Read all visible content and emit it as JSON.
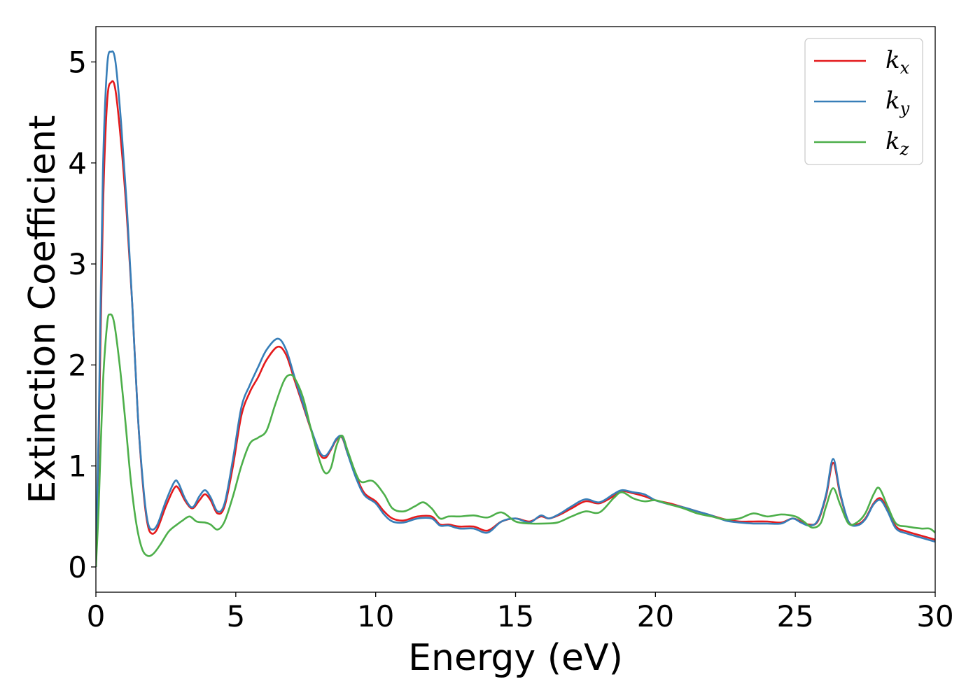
{
  "chart_data": {
    "type": "line",
    "title": "",
    "xlabel": "Energy (eV)",
    "ylabel": "Extinction Coefficient",
    "xlim": [
      0,
      30
    ],
    "ylim": [
      -0.25,
      5.35
    ],
    "x_ticks": [
      0,
      5,
      10,
      15,
      20,
      25,
      30
    ],
    "y_ticks": [
      0,
      1,
      2,
      3,
      4,
      5
    ],
    "grid": false,
    "legend_position": "top-right",
    "series": [
      {
        "name": "kx",
        "label_base": "k",
        "label_sub": "x",
        "color": "#e41a1c",
        "points": [
          [
            0,
            0
          ],
          [
            0.1,
            1.2
          ],
          [
            0.25,
            3.5
          ],
          [
            0.4,
            4.6
          ],
          [
            0.55,
            4.8
          ],
          [
            0.7,
            4.72
          ],
          [
            0.9,
            4.2
          ],
          [
            1.1,
            3.5
          ],
          [
            1.3,
            2.6
          ],
          [
            1.5,
            1.5
          ],
          [
            1.7,
            0.75
          ],
          [
            1.85,
            0.42
          ],
          [
            2.0,
            0.33
          ],
          [
            2.2,
            0.38
          ],
          [
            2.5,
            0.6
          ],
          [
            2.8,
            0.78
          ],
          [
            2.95,
            0.78
          ],
          [
            3.2,
            0.65
          ],
          [
            3.45,
            0.58
          ],
          [
            3.7,
            0.66
          ],
          [
            3.9,
            0.72
          ],
          [
            4.1,
            0.66
          ],
          [
            4.35,
            0.53
          ],
          [
            4.6,
            0.6
          ],
          [
            4.9,
            1.0
          ],
          [
            5.2,
            1.5
          ],
          [
            5.5,
            1.73
          ],
          [
            5.8,
            1.88
          ],
          [
            6.1,
            2.05
          ],
          [
            6.5,
            2.18
          ],
          [
            6.8,
            2.1
          ],
          [
            7.1,
            1.85
          ],
          [
            7.4,
            1.6
          ],
          [
            7.7,
            1.35
          ],
          [
            8.0,
            1.12
          ],
          [
            8.2,
            1.08
          ],
          [
            8.4,
            1.16
          ],
          [
            8.6,
            1.26
          ],
          [
            8.8,
            1.28
          ],
          [
            9.0,
            1.12
          ],
          [
            9.3,
            0.9
          ],
          [
            9.6,
            0.73
          ],
          [
            10.0,
            0.65
          ],
          [
            10.3,
            0.55
          ],
          [
            10.6,
            0.48
          ],
          [
            11.0,
            0.46
          ],
          [
            11.5,
            0.5
          ],
          [
            12.0,
            0.5
          ],
          [
            12.3,
            0.42
          ],
          [
            12.6,
            0.42
          ],
          [
            13.0,
            0.4
          ],
          [
            13.5,
            0.4
          ],
          [
            14.0,
            0.36
          ],
          [
            14.5,
            0.45
          ],
          [
            15.0,
            0.48
          ],
          [
            15.5,
            0.45
          ],
          [
            15.9,
            0.5
          ],
          [
            16.2,
            0.48
          ],
          [
            16.6,
            0.52
          ],
          [
            17.0,
            0.58
          ],
          [
            17.5,
            0.65
          ],
          [
            18.0,
            0.63
          ],
          [
            18.5,
            0.7
          ],
          [
            18.8,
            0.75
          ],
          [
            19.2,
            0.73
          ],
          [
            19.6,
            0.7
          ],
          [
            20.0,
            0.66
          ],
          [
            20.5,
            0.63
          ],
          [
            21.0,
            0.59
          ],
          [
            21.5,
            0.55
          ],
          [
            22.0,
            0.51
          ],
          [
            22.5,
            0.47
          ],
          [
            23.0,
            0.45
          ],
          [
            23.5,
            0.45
          ],
          [
            24.0,
            0.45
          ],
          [
            24.5,
            0.44
          ],
          [
            24.9,
            0.48
          ],
          [
            25.2,
            0.45
          ],
          [
            25.5,
            0.42
          ],
          [
            25.8,
            0.45
          ],
          [
            26.1,
            0.7
          ],
          [
            26.35,
            1.03
          ],
          [
            26.6,
            0.72
          ],
          [
            26.9,
            0.45
          ],
          [
            27.2,
            0.42
          ],
          [
            27.5,
            0.48
          ],
          [
            27.8,
            0.63
          ],
          [
            28.05,
            0.68
          ],
          [
            28.3,
            0.57
          ],
          [
            28.6,
            0.4
          ],
          [
            29.0,
            0.35
          ],
          [
            29.5,
            0.31
          ],
          [
            30.0,
            0.27
          ]
        ]
      },
      {
        "name": "ky",
        "label_base": "k",
        "label_sub": "y",
        "color": "#377eb8",
        "points": [
          [
            0,
            0
          ],
          [
            0.1,
            1.4
          ],
          [
            0.25,
            3.9
          ],
          [
            0.4,
            4.95
          ],
          [
            0.55,
            5.1
          ],
          [
            0.7,
            5.0
          ],
          [
            0.9,
            4.4
          ],
          [
            1.1,
            3.6
          ],
          [
            1.3,
            2.6
          ],
          [
            1.5,
            1.5
          ],
          [
            1.7,
            0.78
          ],
          [
            1.85,
            0.45
          ],
          [
            2.0,
            0.37
          ],
          [
            2.2,
            0.42
          ],
          [
            2.5,
            0.65
          ],
          [
            2.8,
            0.84
          ],
          [
            2.95,
            0.83
          ],
          [
            3.2,
            0.67
          ],
          [
            3.45,
            0.59
          ],
          [
            3.7,
            0.7
          ],
          [
            3.9,
            0.76
          ],
          [
            4.1,
            0.69
          ],
          [
            4.35,
            0.55
          ],
          [
            4.6,
            0.63
          ],
          [
            4.9,
            1.07
          ],
          [
            5.2,
            1.58
          ],
          [
            5.5,
            1.8
          ],
          [
            5.8,
            1.98
          ],
          [
            6.1,
            2.15
          ],
          [
            6.5,
            2.26
          ],
          [
            6.8,
            2.15
          ],
          [
            7.1,
            1.88
          ],
          [
            7.4,
            1.62
          ],
          [
            7.7,
            1.36
          ],
          [
            8.0,
            1.14
          ],
          [
            8.2,
            1.1
          ],
          [
            8.4,
            1.17
          ],
          [
            8.6,
            1.27
          ],
          [
            8.8,
            1.29
          ],
          [
            9.0,
            1.12
          ],
          [
            9.3,
            0.88
          ],
          [
            9.6,
            0.71
          ],
          [
            10.0,
            0.63
          ],
          [
            10.3,
            0.52
          ],
          [
            10.6,
            0.45
          ],
          [
            11.0,
            0.44
          ],
          [
            11.5,
            0.48
          ],
          [
            12.0,
            0.48
          ],
          [
            12.3,
            0.41
          ],
          [
            12.6,
            0.41
          ],
          [
            13.0,
            0.38
          ],
          [
            13.5,
            0.38
          ],
          [
            14.0,
            0.34
          ],
          [
            14.5,
            0.45
          ],
          [
            15.0,
            0.48
          ],
          [
            15.5,
            0.44
          ],
          [
            15.9,
            0.51
          ],
          [
            16.2,
            0.48
          ],
          [
            16.6,
            0.53
          ],
          [
            17.0,
            0.6
          ],
          [
            17.5,
            0.67
          ],
          [
            18.0,
            0.64
          ],
          [
            18.5,
            0.72
          ],
          [
            18.8,
            0.76
          ],
          [
            19.2,
            0.74
          ],
          [
            19.6,
            0.72
          ],
          [
            20.0,
            0.66
          ],
          [
            20.5,
            0.62
          ],
          [
            21.0,
            0.59
          ],
          [
            21.5,
            0.55
          ],
          [
            22.0,
            0.51
          ],
          [
            22.5,
            0.46
          ],
          [
            23.0,
            0.44
          ],
          [
            23.5,
            0.43
          ],
          [
            24.0,
            0.43
          ],
          [
            24.5,
            0.43
          ],
          [
            24.9,
            0.48
          ],
          [
            25.2,
            0.44
          ],
          [
            25.5,
            0.41
          ],
          [
            25.8,
            0.46
          ],
          [
            26.1,
            0.72
          ],
          [
            26.35,
            1.07
          ],
          [
            26.6,
            0.74
          ],
          [
            26.9,
            0.45
          ],
          [
            27.2,
            0.41
          ],
          [
            27.5,
            0.47
          ],
          [
            27.8,
            0.62
          ],
          [
            28.05,
            0.66
          ],
          [
            28.3,
            0.55
          ],
          [
            28.6,
            0.38
          ],
          [
            29.0,
            0.33
          ],
          [
            29.5,
            0.29
          ],
          [
            30.0,
            0.25
          ]
        ]
      },
      {
        "name": "kz",
        "label_base": "k",
        "label_sub": "z",
        "color": "#4daf4a",
        "points": [
          [
            0,
            0
          ],
          [
            0.1,
            0.6
          ],
          [
            0.25,
            1.8
          ],
          [
            0.4,
            2.4
          ],
          [
            0.5,
            2.5
          ],
          [
            0.65,
            2.42
          ],
          [
            0.85,
            2.0
          ],
          [
            1.05,
            1.45
          ],
          [
            1.25,
            0.85
          ],
          [
            1.45,
            0.42
          ],
          [
            1.65,
            0.18
          ],
          [
            1.85,
            0.11
          ],
          [
            2.05,
            0.13
          ],
          [
            2.3,
            0.22
          ],
          [
            2.6,
            0.35
          ],
          [
            2.9,
            0.42
          ],
          [
            3.1,
            0.46
          ],
          [
            3.35,
            0.5
          ],
          [
            3.6,
            0.45
          ],
          [
            3.9,
            0.44
          ],
          [
            4.1,
            0.42
          ],
          [
            4.35,
            0.37
          ],
          [
            4.6,
            0.45
          ],
          [
            4.9,
            0.7
          ],
          [
            5.2,
            1.0
          ],
          [
            5.5,
            1.22
          ],
          [
            5.8,
            1.28
          ],
          [
            6.1,
            1.35
          ],
          [
            6.4,
            1.6
          ],
          [
            6.7,
            1.83
          ],
          [
            6.9,
            1.9
          ],
          [
            7.1,
            1.87
          ],
          [
            7.4,
            1.68
          ],
          [
            7.7,
            1.35
          ],
          [
            8.0,
            1.05
          ],
          [
            8.2,
            0.93
          ],
          [
            8.4,
            0.98
          ],
          [
            8.6,
            1.2
          ],
          [
            8.8,
            1.3
          ],
          [
            9.0,
            1.15
          ],
          [
            9.3,
            0.92
          ],
          [
            9.5,
            0.84
          ],
          [
            9.9,
            0.85
          ],
          [
            10.3,
            0.72
          ],
          [
            10.6,
            0.58
          ],
          [
            11.0,
            0.55
          ],
          [
            11.4,
            0.6
          ],
          [
            11.7,
            0.64
          ],
          [
            12.0,
            0.58
          ],
          [
            12.3,
            0.48
          ],
          [
            12.6,
            0.5
          ],
          [
            13.0,
            0.5
          ],
          [
            13.5,
            0.51
          ],
          [
            14.0,
            0.49
          ],
          [
            14.5,
            0.54
          ],
          [
            15.0,
            0.45
          ],
          [
            15.5,
            0.43
          ],
          [
            16.0,
            0.43
          ],
          [
            16.5,
            0.44
          ],
          [
            17.0,
            0.5
          ],
          [
            17.5,
            0.55
          ],
          [
            18.0,
            0.54
          ],
          [
            18.5,
            0.68
          ],
          [
            18.8,
            0.74
          ],
          [
            19.2,
            0.68
          ],
          [
            19.6,
            0.65
          ],
          [
            20.0,
            0.66
          ],
          [
            20.5,
            0.62
          ],
          [
            21.0,
            0.58
          ],
          [
            21.5,
            0.53
          ],
          [
            22.0,
            0.5
          ],
          [
            22.5,
            0.47
          ],
          [
            23.0,
            0.48
          ],
          [
            23.5,
            0.53
          ],
          [
            24.0,
            0.5
          ],
          [
            24.5,
            0.52
          ],
          [
            25.0,
            0.5
          ],
          [
            25.3,
            0.45
          ],
          [
            25.6,
            0.39
          ],
          [
            25.9,
            0.43
          ],
          [
            26.1,
            0.6
          ],
          [
            26.35,
            0.78
          ],
          [
            26.6,
            0.62
          ],
          [
            26.9,
            0.43
          ],
          [
            27.2,
            0.44
          ],
          [
            27.5,
            0.53
          ],
          [
            27.8,
            0.72
          ],
          [
            28.0,
            0.78
          ],
          [
            28.3,
            0.6
          ],
          [
            28.6,
            0.43
          ],
          [
            29.0,
            0.4
          ],
          [
            29.5,
            0.38
          ],
          [
            29.8,
            0.38
          ],
          [
            30.0,
            0.34
          ]
        ]
      }
    ]
  }
}
